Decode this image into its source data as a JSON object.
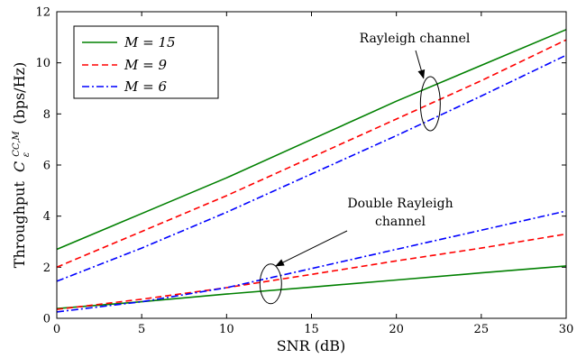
{
  "chart_data": {
    "type": "line",
    "xlabel": "SNR (dB)",
    "ylabel": "Throughput",
    "ylabel_math": {
      "base": "C",
      "sup": "CC,M",
      "sub": "ε",
      "unit": "(bps/Hz)"
    },
    "xlim": [
      0,
      30
    ],
    "ylim": [
      0,
      12
    ],
    "xticks": [
      0,
      5,
      10,
      15,
      20,
      25,
      30
    ],
    "yticks": [
      0,
      2,
      4,
      6,
      8,
      10,
      12
    ],
    "grid": false,
    "legend_position": "top-left",
    "legend": [
      {
        "label": "M = 15",
        "color": "#008000",
        "dash": "solid"
      },
      {
        "label": "M = 9",
        "color": "#ff0000",
        "dash": "dashed"
      },
      {
        "label": "M = 6",
        "color": "#0000ff",
        "dash": "dashdot"
      }
    ],
    "annotations": {
      "rayleigh": {
        "lines": [
          "Rayleigh channel"
        ],
        "ellipse_center": [
          22,
          8.4
        ],
        "arrow_to": [
          21.6,
          9.4
        ]
      },
      "double_rayleigh": {
        "lines": [
          "Double Rayleigh",
          "channel"
        ],
        "ellipse_center": [
          12.6,
          1.35
        ],
        "arrow_to": [
          12.9,
          2.05
        ]
      }
    },
    "x": [
      0,
      5,
      10,
      15,
      20,
      25,
      30
    ],
    "series": [
      {
        "name": "M = 15",
        "group": "Rayleigh channel",
        "color": "#008000",
        "dash": "solid",
        "values": [
          2.7,
          4.1,
          5.5,
          7.0,
          8.5,
          9.9,
          11.3
        ]
      },
      {
        "name": "M = 9",
        "group": "Rayleigh channel",
        "color": "#ff0000",
        "dash": "dashed",
        "values": [
          2.0,
          3.4,
          4.8,
          6.3,
          7.8,
          9.3,
          10.9
        ]
      },
      {
        "name": "M = 6",
        "group": "Rayleigh channel",
        "color": "#0000ff",
        "dash": "dashdot",
        "values": [
          1.45,
          2.75,
          4.15,
          5.65,
          7.15,
          8.7,
          10.3
        ]
      },
      {
        "name": "M = 15",
        "group": "Double Rayleigh channel",
        "color": "#008000",
        "dash": "solid",
        "values": [
          0.38,
          0.65,
          0.95,
          1.22,
          1.5,
          1.78,
          2.05
        ]
      },
      {
        "name": "M = 9",
        "group": "Double Rayleigh channel",
        "color": "#ff0000",
        "dash": "dashed",
        "values": [
          0.35,
          0.75,
          1.2,
          1.72,
          2.25,
          2.75,
          3.3
        ]
      },
      {
        "name": "M = 6",
        "group": "Double Rayleigh channel",
        "color": "#0000ff",
        "dash": "dashdot",
        "values": [
          0.25,
          0.65,
          1.2,
          1.95,
          2.7,
          3.45,
          4.2
        ]
      }
    ]
  }
}
